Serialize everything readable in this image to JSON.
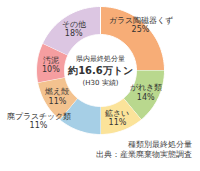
{
  "chart_data": {
    "type": "donut",
    "categories": [
      "ガラス陶磁器くず",
      "がれき類",
      "鉱さい",
      "廃プラスチック類",
      "燃え殻",
      "汚泥",
      "その他"
    ],
    "values": [
      25,
      14,
      11,
      11,
      11,
      10,
      18
    ],
    "value_labels": [
      "25%",
      "14%",
      "11%",
      "11%",
      "11%",
      "10%",
      "18%"
    ],
    "colors": [
      "#f7ad77",
      "#b9d88e",
      "#fbe39a",
      "#a6cfe6",
      "#f3c28f",
      "#f59ea0",
      "#dcc6e2"
    ],
    "data_labels": true,
    "annotations": [
      "県内最終処分量",
      "約16.6万トン",
      "(H30 実績)"
    ],
    "caption": [
      "種類別最終処分量",
      "出典：産業廃棄物実態調査"
    ]
  }
}
